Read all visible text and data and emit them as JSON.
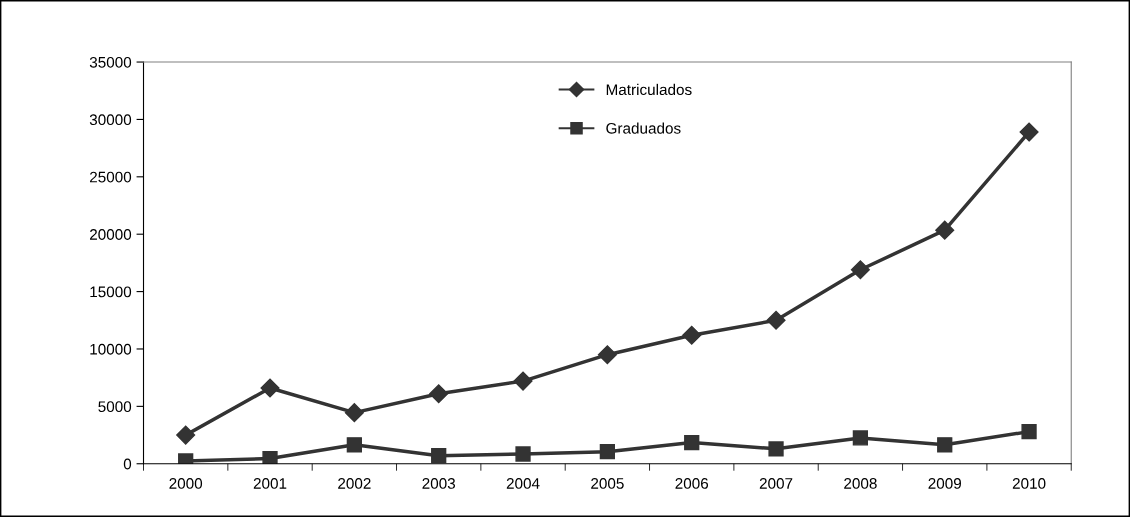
{
  "chart_data": {
    "type": "line",
    "categories": [
      "2000",
      "2001",
      "2002",
      "2003",
      "2004",
      "2005",
      "2006",
      "2007",
      "2008",
      "2009",
      "2010"
    ],
    "series": [
      {
        "name": "Matriculados",
        "color": "#333333",
        "marker": "diamond",
        "values": [
          2500,
          6600,
          4450,
          6100,
          7200,
          9500,
          11200,
          12500,
          16900,
          20350,
          28900
        ]
      },
      {
        "name": "Graduados",
        "color": "#333333",
        "marker": "square",
        "values": [
          250,
          450,
          1650,
          700,
          850,
          1050,
          1850,
          1300,
          2250,
          1650,
          2800
        ]
      }
    ],
    "ylim": [
      0,
      35000
    ],
    "yticks": [
      0,
      5000,
      10000,
      15000,
      20000,
      25000,
      30000,
      35000
    ],
    "grid": false,
    "legend": "top"
  }
}
